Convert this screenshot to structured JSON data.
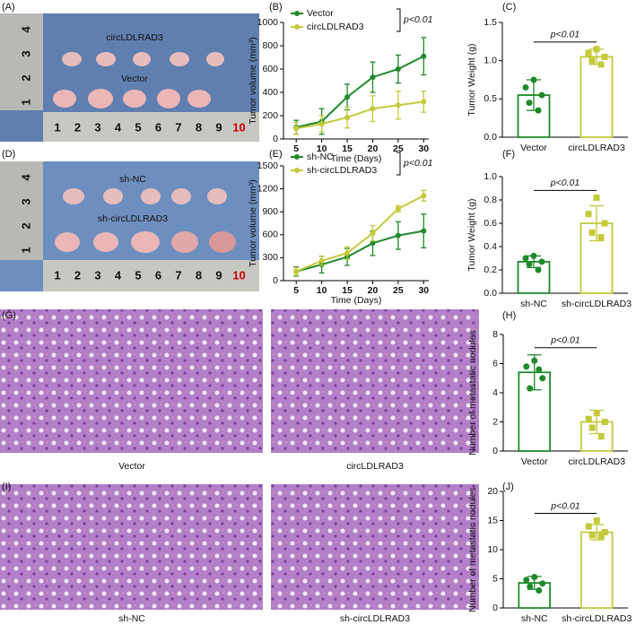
{
  "panel_labels": [
    "(A)",
    "(B)",
    "(C)",
    "(D)",
    "(E)",
    "(F)",
    "(G)",
    "(H)",
    "(I)",
    "(J)"
  ],
  "photos": [
    {
      "labels": [
        "circLDLRAD3",
        "Vector"
      ],
      "ruler_x": [
        "1",
        "2",
        "3",
        "4",
        "5",
        "6",
        "7",
        "8",
        "9",
        "10"
      ],
      "ruler_y": [
        "4",
        "3",
        "2",
        "1"
      ]
    },
    {
      "labels": [
        "sh-NC",
        "sh-circLDLRAD3"
      ],
      "ruler_x": [
        "1",
        "2",
        "3",
        "4",
        "5",
        "6",
        "7",
        "8",
        "9",
        "10"
      ],
      "ruler_y": [
        "4",
        "3",
        "2",
        "1"
      ]
    }
  ],
  "histology_captions": [
    "Vector",
    "circLDLRAD3",
    "sh-NC",
    "sh-circLDLRAD3"
  ],
  "chart_data": [
    {
      "type": "line",
      "xlabel": "Time (Days)",
      "ylabel": "Tumor volume (mm³)",
      "annotation": "p<0.01",
      "legend": "upper left",
      "x": [
        5,
        10,
        15,
        20,
        25,
        30
      ],
      "xlim": [
        2.5,
        31
      ],
      "xticks": [
        5,
        10,
        15,
        20,
        25,
        30
      ],
      "ylim": [
        0,
        1000
      ],
      "yticks": [
        0,
        200,
        400,
        600,
        800,
        1000
      ],
      "series": [
        {
          "name": "Vector",
          "color": "#1f8a2a",
          "values": [
            100,
            150,
            360,
            530,
            600,
            710
          ],
          "errors": [
            60,
            110,
            110,
            130,
            120,
            160
          ]
        },
        {
          "name": "circLDLRAD3",
          "color": "#c5c93a",
          "values": [
            90,
            130,
            185,
            260,
            290,
            320
          ],
          "errors": [
            50,
            70,
            90,
            110,
            120,
            90
          ]
        }
      ]
    },
    {
      "type": "bar",
      "ylabel": "Tumor Weight (g)",
      "annotation": "p<0.01",
      "categories": [
        "Vector",
        "circLDLRAD3"
      ],
      "colors": [
        "#1f8a2a",
        "#c5c93a"
      ],
      "markers": [
        "circle",
        "square"
      ],
      "values": [
        0.55,
        1.05
      ],
      "errors": [
        0.2,
        0.1
      ],
      "points": [
        [
          0.75,
          0.65,
          0.55,
          0.45,
          0.35
        ],
        [
          1.15,
          1.1,
          1.05,
          1.0,
          0.95
        ]
      ],
      "ylim": [
        0,
        1.5
      ],
      "yticks": [
        {
          "value": 0,
          "label": "0.0"
        },
        {
          "value": 0.5,
          "label": "0.5"
        },
        {
          "value": 1,
          "label": "1.0"
        },
        {
          "value": 1.5,
          "label": "1.5"
        }
      ]
    },
    {
      "type": "line",
      "xlabel": "Time (Days)",
      "ylabel": "Tumor volume (mm³)",
      "annotation": "p<0.01",
      "legend": "upper left",
      "x": [
        5,
        10,
        15,
        20,
        25,
        30
      ],
      "xlim": [
        2.5,
        31
      ],
      "xticks": [
        5,
        10,
        15,
        20,
        25,
        30
      ],
      "ylim": [
        0,
        1500
      ],
      "yticks": [
        0,
        300,
        600,
        900,
        1200,
        1500
      ],
      "series": [
        {
          "name": "sh-NC",
          "color": "#1f8a2a",
          "values": [
            120,
            210,
            310,
            490,
            590,
            650
          ],
          "errors": [
            60,
            110,
            110,
            160,
            180,
            220
          ]
        },
        {
          "name": "sh-circLDLRAD3",
          "color": "#c5c93a",
          "values": [
            120,
            260,
            360,
            620,
            940,
            1110
          ],
          "errors": [
            50,
            60,
            80,
            100,
            40,
            70
          ]
        }
      ]
    },
    {
      "type": "bar",
      "ylabel": "Tumor Weight (g)",
      "annotation": "p<0.01",
      "categories": [
        "sh-NC",
        "sh-circLDLRAD3"
      ],
      "colors": [
        "#1f8a2a",
        "#c5c93a"
      ],
      "markers": [
        "circle",
        "square"
      ],
      "values": [
        0.27,
        0.6
      ],
      "errors": [
        0.05,
        0.15
      ],
      "points": [
        [
          0.32,
          0.3,
          0.27,
          0.25,
          0.2
        ],
        [
          0.82,
          0.68,
          0.6,
          0.52,
          0.48
        ]
      ],
      "ylim": [
        0,
        1.0
      ],
      "yticks": [
        {
          "value": 0,
          "label": "0.0"
        },
        {
          "value": 0.2,
          "label": "0.2"
        },
        {
          "value": 0.4,
          "label": "0.4"
        },
        {
          "value": 0.6,
          "label": "0.6"
        },
        {
          "value": 0.8,
          "label": "0.8"
        },
        {
          "value": 1,
          "label": "1.0"
        }
      ]
    },
    {
      "type": "bar",
      "ylabel": "Number of metastatic nodules",
      "annotation": "p<0.01",
      "categories": [
        "Vector",
        "circLDLRAD3"
      ],
      "colors": [
        "#1f8a2a",
        "#c5c93a"
      ],
      "markers": [
        "circle",
        "square"
      ],
      "values": [
        5.4,
        2.0
      ],
      "errors": [
        1.2,
        0.8
      ],
      "points": [
        [
          6.2,
          5.8,
          5.0,
          4.3,
          5.6
        ],
        [
          2.6,
          2.2,
          2.0,
          1.6,
          1.0
        ]
      ],
      "ylim": [
        0,
        8
      ],
      "yticks": [
        0,
        2,
        4,
        6,
        8
      ]
    },
    {
      "type": "bar",
      "ylabel": "Number of metastatic nodules",
      "annotation": "p<0.01",
      "categories": [
        "sh-NC",
        "sh-circLDLRAD3"
      ],
      "colors": [
        "#1f8a2a",
        "#c5c93a"
      ],
      "markers": [
        "circle",
        "square"
      ],
      "values": [
        4.3,
        13
      ],
      "errors": [
        1.1,
        1.3
      ],
      "points": [
        [
          5.3,
          4.8,
          4.2,
          3.7,
          3.0
        ],
        [
          15,
          14,
          13,
          12.5,
          12.3
        ]
      ],
      "ylim": [
        0,
        20
      ],
      "yticks": [
        0,
        5,
        10,
        15,
        20
      ]
    }
  ]
}
